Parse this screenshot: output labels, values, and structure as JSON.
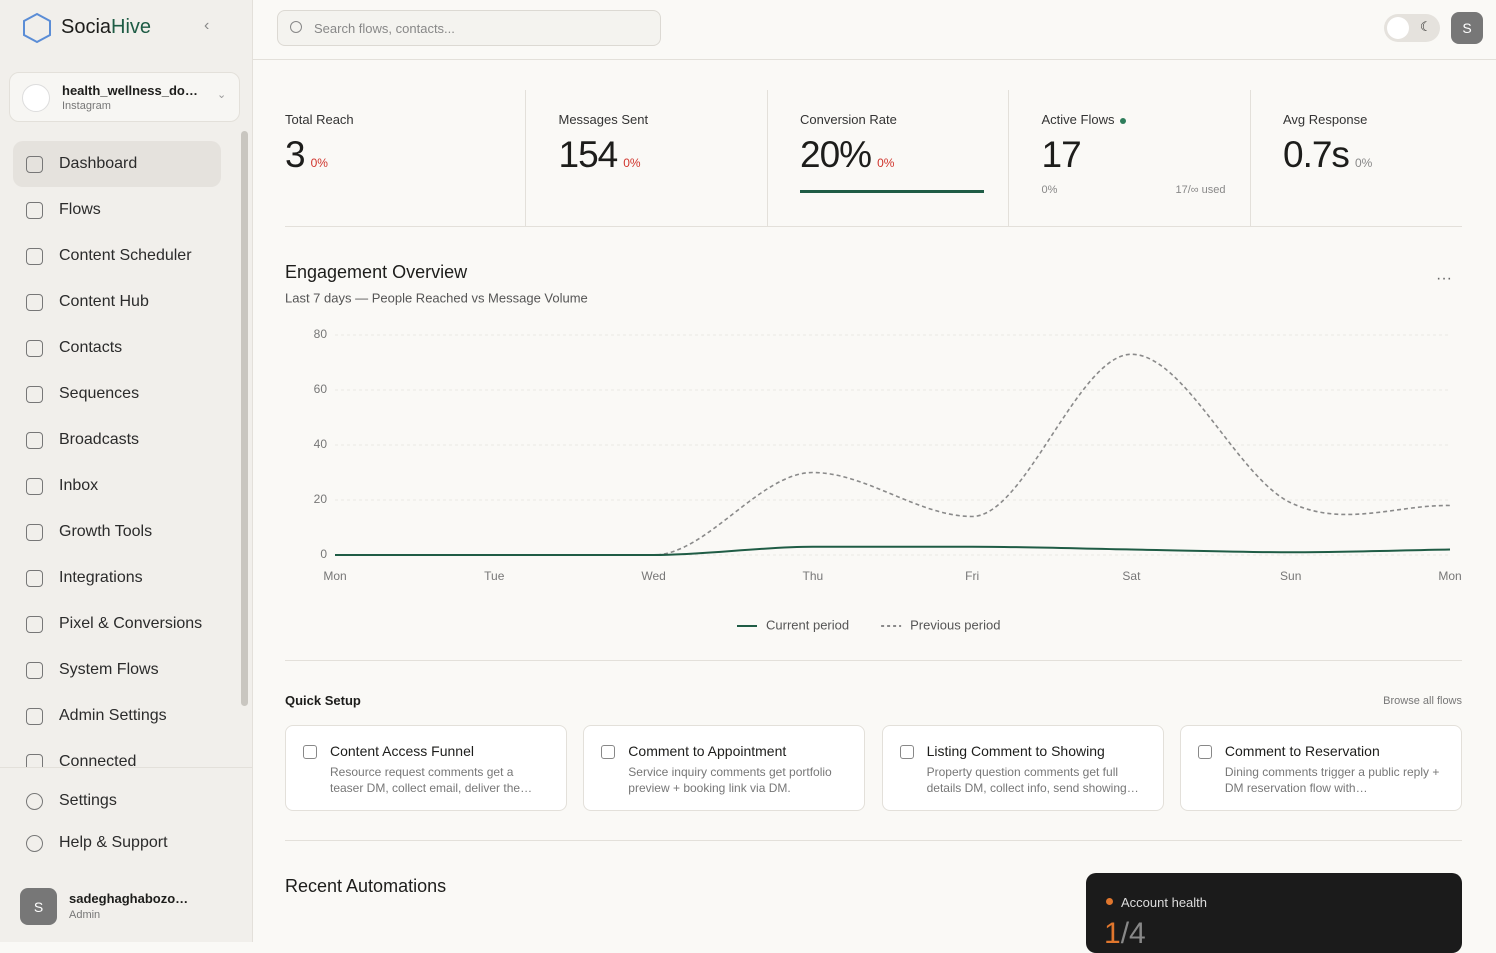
{
  "brand": {
    "name_a": "Socia",
    "name_b": "Hive"
  },
  "account": {
    "name": "health_wellness_do…",
    "platform": "Instagram"
  },
  "nav": [
    "Dashboard",
    "Flows",
    "Content Scheduler",
    "Content Hub",
    "Contacts",
    "Sequences",
    "Broadcasts",
    "Inbox",
    "Growth Tools",
    "Integrations",
    "Pixel & Conversions",
    "System Flows",
    "Admin Settings",
    "Connected"
  ],
  "nav_footer": [
    "Settings",
    "Help & Support"
  ],
  "user": {
    "initial": "S",
    "name": "sadeghaghabozo…",
    "role": "Admin"
  },
  "search": {
    "placeholder": "Search flows, contacts..."
  },
  "avatar": "S",
  "stats": [
    {
      "label": "Total Reach",
      "value": "3",
      "change": "0%"
    },
    {
      "label": "Messages Sent",
      "value": "154",
      "change": "0%"
    },
    {
      "label": "Conversion Rate",
      "value": "20%",
      "change": "0%"
    },
    {
      "label": "Active Flows",
      "value": "17",
      "change": "0%",
      "usage": "17/∞ used"
    },
    {
      "label": "Avg Response",
      "value": "0.7s",
      "change": "0%"
    }
  ],
  "chart_data": {
    "type": "line",
    "title": "Engagement Overview",
    "subtitle": "Last 7 days — People Reached vs Message Volume",
    "categories": [
      "Mon",
      "Tue",
      "Wed",
      "Thu",
      "Fri",
      "Sat",
      "Sun",
      "Mon"
    ],
    "series": [
      {
        "name": "Current period",
        "color": "#1f5c45",
        "values": [
          0,
          0,
          0,
          3,
          3,
          2,
          1,
          2
        ]
      },
      {
        "name": "Previous period",
        "color": "#8a8a8a",
        "dashed": true,
        "values": [
          0,
          0,
          0,
          30,
          14,
          73,
          19,
          18
        ]
      }
    ],
    "ylim": [
      0,
      80
    ],
    "yticks": [
      0,
      20,
      40,
      60,
      80
    ],
    "grid": true
  },
  "quick_setup": {
    "title": "Quick Setup",
    "link": "Browse all flows",
    "cards": [
      {
        "title": "Content Access Funnel",
        "desc": "Resource request comments get a teaser DM, collect email, deliver the…"
      },
      {
        "title": "Comment to Appointment",
        "desc": "Service inquiry comments get portfolio preview + booking link via DM."
      },
      {
        "title": "Listing Comment to Showing",
        "desc": "Property question comments get full details DM, collect info, send showing…"
      },
      {
        "title": "Comment to Reservation",
        "desc": "Dining comments trigger a public reply + DM reservation flow with…"
      }
    ]
  },
  "recent": {
    "title": "Recent Automations"
  },
  "health": {
    "label": "Account health",
    "value_a": "1",
    "value_b": "/4"
  }
}
